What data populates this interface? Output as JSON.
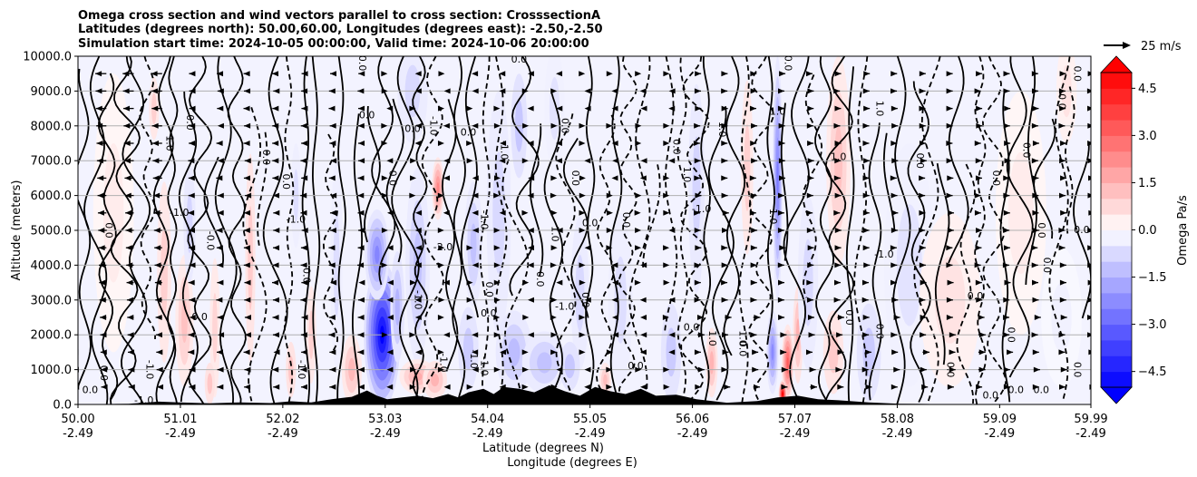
{
  "chart_data": {
    "type": "heatmap",
    "title_lines": [
      "Omega cross section and wind vectors parallel to cross section: CrosssectionA",
      "Latitudes (degrees north): 50.00,60.00, Longitudes (degrees east): -2.50,-2.50",
      "Simulation start time: 2024-10-05 00:00:00, Valid time: 2024-10-06 20:00:00"
    ],
    "ylabel": "Altitude (meters)",
    "xlabel_lines": [
      "Latitude (degrees N)",
      "Longitude (degrees E)"
    ],
    "yticks": [
      0,
      1000,
      2000,
      3000,
      4000,
      5000,
      6000,
      7000,
      8000,
      9000,
      10000
    ],
    "ytick_labels": [
      "0.0",
      "1000.0",
      "2000.0",
      "3000.0",
      "4000.0",
      "5000.0",
      "6000.0",
      "7000.0",
      "8000.0",
      "9000.0",
      "10000.0"
    ],
    "ylim": [
      0,
      10000
    ],
    "xlim": [
      50.0,
      59.99
    ],
    "xticks": [
      50.0,
      51.01,
      52.02,
      53.03,
      54.04,
      55.05,
      56.06,
      57.07,
      58.08,
      59.09,
      59.99
    ],
    "xtick_lat_labels": [
      "50.00",
      "51.01",
      "52.02",
      "53.03",
      "54.04",
      "55.05",
      "56.06",
      "57.07",
      "58.08",
      "59.09",
      "59.99"
    ],
    "xtick_lon_labels": [
      "-2.49",
      "-2.49",
      "-2.49",
      "-2.49",
      "-2.49",
      "-2.49",
      "-2.49",
      "-2.49",
      "-2.49",
      "-2.49",
      "-2.49"
    ],
    "grid": "horizontal",
    "colorbar": {
      "label": "Omega Pa/s",
      "range": [
        -5.0,
        5.0
      ],
      "ticks": [
        -4.5,
        -3.0,
        -1.5,
        0.0,
        1.5,
        3.0,
        4.5
      ],
      "tick_labels": [
        "−4.5",
        "−3.0",
        "−1.5",
        "0.0",
        "1.5",
        "3.0",
        "4.5"
      ],
      "extend": "both",
      "colormap": "bwr"
    },
    "quiver_key": {
      "label": "25 m/s",
      "speed": 25
    },
    "contour_labels": [
      {
        "text": "0.0",
        "lat": 50.12,
        "alt": 400
      },
      {
        "text": "0.0",
        "lat": 50.25,
        "alt": 900
      },
      {
        "text": "0.0",
        "lat": 50.3,
        "alt": 5000
      },
      {
        "text": "-1.0",
        "lat": 50.65,
        "alt": 100
      },
      {
        "text": "-1.0",
        "lat": 50.7,
        "alt": 1000
      },
      {
        "text": "1.0",
        "lat": 50.9,
        "alt": 7500
      },
      {
        "text": "-1.0",
        "lat": 51.0,
        "alt": 5500
      },
      {
        "text": "0.0",
        "lat": 51.1,
        "alt": 8100
      },
      {
        "text": "-0.0",
        "lat": 51.3,
        "alt": 4700
      },
      {
        "text": "0.0",
        "lat": 51.2,
        "alt": 2500
      },
      {
        "text": "0.0",
        "lat": 51.85,
        "alt": 7100
      },
      {
        "text": "0.0",
        "lat": 52.05,
        "alt": 6400
      },
      {
        "text": "-1.0",
        "lat": 52.15,
        "alt": 5300
      },
      {
        "text": "-1.0",
        "lat": 52.2,
        "alt": 1000
      },
      {
        "text": "0.0",
        "lat": 52.25,
        "alt": 3700
      },
      {
        "text": "0.0",
        "lat": 52.85,
        "alt": 8300
      },
      {
        "text": "0.0",
        "lat": 52.8,
        "alt": 9800
      },
      {
        "text": "0.0",
        "lat": 53.1,
        "alt": 6500
      },
      {
        "text": "0.0",
        "lat": 53.3,
        "alt": 7900
      },
      {
        "text": "-1.0",
        "lat": 53.35,
        "alt": 3000
      },
      {
        "text": "-1.0",
        "lat": 53.5,
        "alt": 8000
      },
      {
        "text": "-2.0",
        "lat": 53.6,
        "alt": 4500
      },
      {
        "text": "-1.0",
        "lat": 53.6,
        "alt": 1200
      },
      {
        "text": "-1.0",
        "lat": 53.9,
        "alt": 1300
      },
      {
        "text": "0.0",
        "lat": 53.85,
        "alt": 7800
      },
      {
        "text": "-1.0",
        "lat": 54.2,
        "alt": 7300
      },
      {
        "text": "-1.0",
        "lat": 54.0,
        "alt": 5300
      },
      {
        "text": "0.0",
        "lat": 54.05,
        "alt": 2600
      },
      {
        "text": "0.0",
        "lat": 54.05,
        "alt": 3300
      },
      {
        "text": "-1.0",
        "lat": 54.0,
        "alt": 1100
      },
      {
        "text": "0.0",
        "lat": 54.35,
        "alt": 9900
      },
      {
        "text": "1.0",
        "lat": 54.7,
        "alt": 4900
      },
      {
        "text": "0.0",
        "lat": 54.55,
        "alt": 3600
      },
      {
        "text": "-1.0",
        "lat": 54.8,
        "alt": 2800
      },
      {
        "text": "0.0",
        "lat": 54.8,
        "alt": 8000
      },
      {
        "text": "0.0",
        "lat": 54.9,
        "alt": 6500
      },
      {
        "text": "0.0",
        "lat": 55.05,
        "alt": 5200
      },
      {
        "text": "0.0",
        "lat": 55.0,
        "alt": 3000
      },
      {
        "text": "0.0",
        "lat": 55.4,
        "alt": 5300
      },
      {
        "text": "0.0",
        "lat": 55.5,
        "alt": 1100
      },
      {
        "text": "0.0",
        "lat": 55.9,
        "alt": 7400
      },
      {
        "text": "1.0",
        "lat": 56.0,
        "alt": 6600
      },
      {
        "text": "0.0",
        "lat": 56.05,
        "alt": 2200
      },
      {
        "text": "1.0",
        "lat": 56.25,
        "alt": 1900
      },
      {
        "text": "1.0",
        "lat": 56.35,
        "alt": 7900
      },
      {
        "text": "-1.0",
        "lat": 56.15,
        "alt": 5600
      },
      {
        "text": "1.0",
        "lat": 56.55,
        "alt": 1900
      },
      {
        "text": "0.0",
        "lat": 56.55,
        "alt": 1600
      },
      {
        "text": "1.0",
        "lat": 56.9,
        "alt": 8400
      },
      {
        "text": "1.0",
        "lat": 56.85,
        "alt": 5400
      },
      {
        "text": "0.0",
        "lat": 57.0,
        "alt": 9800
      },
      {
        "text": "1.0",
        "lat": 57.5,
        "alt": 7100
      },
      {
        "text": "0.0",
        "lat": 57.6,
        "alt": 2500
      },
      {
        "text": "1.0",
        "lat": 57.9,
        "alt": 8500
      },
      {
        "text": "-1.0",
        "lat": 57.95,
        "alt": 4300
      },
      {
        "text": "0.0",
        "lat": 57.9,
        "alt": 2100
      },
      {
        "text": "0.0",
        "lat": 58.3,
        "alt": 7000
      },
      {
        "text": "0.0",
        "lat": 58.85,
        "alt": 3100
      },
      {
        "text": "0.0",
        "lat": 59.05,
        "alt": 6500
      },
      {
        "text": "0.0",
        "lat": 58.6,
        "alt": 1000
      },
      {
        "text": "0.0",
        "lat": 59.0,
        "alt": 250
      },
      {
        "text": "0.0",
        "lat": 59.35,
        "alt": 7300
      },
      {
        "text": "0.0",
        "lat": 59.2,
        "alt": 2000
      },
      {
        "text": "0.0",
        "lat": 59.25,
        "alt": 400
      },
      {
        "text": "0.0",
        "lat": 59.5,
        "alt": 5000
      },
      {
        "text": "0.0",
        "lat": 59.55,
        "alt": 4000
      },
      {
        "text": "0.0",
        "lat": 59.5,
        "alt": 400
      },
      {
        "text": "0.0",
        "lat": 59.7,
        "alt": 8700
      },
      {
        "text": "0.0",
        "lat": 59.85,
        "alt": 9500
      },
      {
        "text": "0.0",
        "lat": 59.9,
        "alt": 5000
      },
      {
        "text": "0.0",
        "lat": 59.85,
        "alt": 1000
      }
    ],
    "omega_features": [
      {
        "lat": 53.0,
        "alt": 2000,
        "dlat": 0.18,
        "dalt": 2100,
        "value": -5.5
      },
      {
        "lat": 52.95,
        "alt": 4300,
        "dlat": 0.12,
        "dalt": 1300,
        "value": -2.6
      },
      {
        "lat": 53.15,
        "alt": 2800,
        "dlat": 0.07,
        "dalt": 1600,
        "value": -1.6
      },
      {
        "lat": 53.35,
        "alt": 4000,
        "dlat": 0.12,
        "dalt": 2800,
        "value": -1.3
      },
      {
        "lat": 53.35,
        "alt": 800,
        "dlat": 0.18,
        "dalt": 500,
        "value": 1.8
      },
      {
        "lat": 53.52,
        "alt": 700,
        "dlat": 0.12,
        "dalt": 550,
        "value": 1.6
      },
      {
        "lat": 52.7,
        "alt": 1000,
        "dlat": 0.1,
        "dalt": 1000,
        "value": 1.5
      },
      {
        "lat": 53.55,
        "alt": 6200,
        "dlat": 0.06,
        "dalt": 900,
        "value": 2.6
      },
      {
        "lat": 53.9,
        "alt": 4600,
        "dlat": 0.09,
        "dalt": 1800,
        "value": -1.3
      },
      {
        "lat": 54.15,
        "alt": 5500,
        "dlat": 0.12,
        "dalt": 3500,
        "value": -0.8
      },
      {
        "lat": 54.35,
        "alt": 8000,
        "dlat": 0.08,
        "dalt": 1500,
        "value": -1.2
      },
      {
        "lat": 54.3,
        "alt": 1500,
        "dlat": 0.18,
        "dalt": 1200,
        "value": -1.4
      },
      {
        "lat": 54.6,
        "alt": 1200,
        "dlat": 0.22,
        "dalt": 900,
        "value": -1.3
      },
      {
        "lat": 53.85,
        "alt": 1600,
        "dlat": 0.1,
        "dalt": 1200,
        "value": -1.1
      },
      {
        "lat": 54.95,
        "alt": 3200,
        "dlat": 0.09,
        "dalt": 2200,
        "value": -0.8
      },
      {
        "lat": 54.85,
        "alt": 1100,
        "dlat": 0.1,
        "dalt": 700,
        "value": -1.2
      },
      {
        "lat": 55.35,
        "alt": 3000,
        "dlat": 0.12,
        "dalt": 2500,
        "value": -0.7
      },
      {
        "lat": 51.05,
        "alt": 2400,
        "dlat": 0.09,
        "dalt": 1900,
        "value": 1.3
      },
      {
        "lat": 51.1,
        "alt": 5200,
        "dlat": 0.06,
        "dalt": 1700,
        "value": -0.9
      },
      {
        "lat": 50.85,
        "alt": 3800,
        "dlat": 0.07,
        "dalt": 2600,
        "value": 1.0
      },
      {
        "lat": 50.75,
        "alt": 8500,
        "dlat": 0.05,
        "dalt": 900,
        "value": 1.0
      },
      {
        "lat": 51.35,
        "alt": 2200,
        "dlat": 0.05,
        "dalt": 2000,
        "value": 0.9
      },
      {
        "lat": 51.3,
        "alt": 600,
        "dlat": 0.05,
        "dalt": 600,
        "value": 1.2
      },
      {
        "lat": 51.7,
        "alt": 4200,
        "dlat": 0.05,
        "dalt": 3000,
        "value": 1.1
      },
      {
        "lat": 52.1,
        "alt": 1000,
        "dlat": 0.05,
        "dalt": 800,
        "value": 1.2
      },
      {
        "lat": 52.3,
        "alt": 2000,
        "dlat": 0.05,
        "dalt": 1400,
        "value": 1.0
      },
      {
        "lat": 52.15,
        "alt": 6000,
        "dlat": 0.05,
        "dalt": 1500,
        "value": -0.7
      },
      {
        "lat": 52.55,
        "alt": 4000,
        "dlat": 0.06,
        "dalt": 3000,
        "value": -0.7
      },
      {
        "lat": 55.2,
        "alt": 700,
        "dlat": 0.06,
        "dalt": 500,
        "value": 1.4
      },
      {
        "lat": 55.85,
        "alt": 1500,
        "dlat": 0.1,
        "dalt": 1400,
        "value": -1.1
      },
      {
        "lat": 56.1,
        "alt": 6200,
        "dlat": 0.08,
        "dalt": 3000,
        "value": -0.9
      },
      {
        "lat": 56.25,
        "alt": 1200,
        "dlat": 0.06,
        "dalt": 1000,
        "value": 1.6
      },
      {
        "lat": 56.6,
        "alt": 6800,
        "dlat": 0.06,
        "dalt": 2500,
        "value": 1.0
      },
      {
        "lat": 56.9,
        "alt": 6500,
        "dlat": 0.05,
        "dalt": 3500,
        "value": -2.8
      },
      {
        "lat": 56.85,
        "alt": 1500,
        "dlat": 0.06,
        "dalt": 1200,
        "value": -2.5
      },
      {
        "lat": 57.0,
        "alt": 1200,
        "dlat": 0.06,
        "dalt": 1100,
        "value": 3.5
      },
      {
        "lat": 56.95,
        "alt": 300,
        "dlat": 0.04,
        "dalt": 400,
        "value": 5.5
      },
      {
        "lat": 57.1,
        "alt": 2000,
        "dlat": 0.05,
        "dalt": 1400,
        "value": 1.7
      },
      {
        "lat": 57.2,
        "alt": 3500,
        "dlat": 0.1,
        "dalt": 2500,
        "value": -0.8
      },
      {
        "lat": 57.45,
        "alt": 1500,
        "dlat": 0.1,
        "dalt": 1200,
        "value": 1.1
      },
      {
        "lat": 57.5,
        "alt": 7000,
        "dlat": 0.12,
        "dalt": 3000,
        "value": 1.3
      },
      {
        "lat": 57.8,
        "alt": 1500,
        "dlat": 0.12,
        "dalt": 1400,
        "value": -1.1
      },
      {
        "lat": 58.2,
        "alt": 4000,
        "dlat": 0.25,
        "dalt": 3500,
        "value": -0.6
      },
      {
        "lat": 58.6,
        "alt": 3000,
        "dlat": 0.3,
        "dalt": 2500,
        "value": 0.6
      },
      {
        "lat": 59.3,
        "alt": 5500,
        "dlat": 0.25,
        "dalt": 3500,
        "value": 0.4
      },
      {
        "lat": 59.7,
        "alt": 2500,
        "dlat": 0.2,
        "dalt": 2000,
        "value": -0.3
      },
      {
        "lat": 59.75,
        "alt": 9000,
        "dlat": 0.1,
        "dalt": 1500,
        "value": 0.6
      },
      {
        "lat": 50.35,
        "alt": 5500,
        "dlat": 0.2,
        "dalt": 4000,
        "value": 0.4
      },
      {
        "lat": 53.3,
        "alt": 9000,
        "dlat": 0.15,
        "dalt": 1500,
        "value": -0.8
      },
      {
        "lat": 54.7,
        "alt": 8500,
        "dlat": 0.1,
        "dalt": 1800,
        "value": -0.6
      }
    ],
    "terrain_profile": [
      {
        "lat": 50.0,
        "alt": 0
      },
      {
        "lat": 50.5,
        "alt": 20
      },
      {
        "lat": 50.8,
        "alt": 80
      },
      {
        "lat": 51.0,
        "alt": 60
      },
      {
        "lat": 51.3,
        "alt": 30
      },
      {
        "lat": 51.6,
        "alt": 60
      },
      {
        "lat": 51.9,
        "alt": 40
      },
      {
        "lat": 52.1,
        "alt": 90
      },
      {
        "lat": 52.3,
        "alt": 60
      },
      {
        "lat": 52.5,
        "alt": 150
      },
      {
        "lat": 52.7,
        "alt": 220
      },
      {
        "lat": 52.85,
        "alt": 400
      },
      {
        "lat": 52.95,
        "alt": 250
      },
      {
        "lat": 53.05,
        "alt": 150
      },
      {
        "lat": 53.2,
        "alt": 200
      },
      {
        "lat": 53.35,
        "alt": 250
      },
      {
        "lat": 53.5,
        "alt": 180
      },
      {
        "lat": 53.65,
        "alt": 300
      },
      {
        "lat": 53.75,
        "alt": 200
      },
      {
        "lat": 53.85,
        "alt": 350
      },
      {
        "lat": 54.0,
        "alt": 450
      },
      {
        "lat": 54.1,
        "alt": 300
      },
      {
        "lat": 54.2,
        "alt": 500
      },
      {
        "lat": 54.35,
        "alt": 450
      },
      {
        "lat": 54.5,
        "alt": 350
      },
      {
        "lat": 54.65,
        "alt": 550
      },
      {
        "lat": 54.8,
        "alt": 380
      },
      {
        "lat": 54.95,
        "alt": 250
      },
      {
        "lat": 55.1,
        "alt": 500
      },
      {
        "lat": 55.25,
        "alt": 380
      },
      {
        "lat": 55.4,
        "alt": 300
      },
      {
        "lat": 55.55,
        "alt": 450
      },
      {
        "lat": 55.7,
        "alt": 250
      },
      {
        "lat": 55.9,
        "alt": 280
      },
      {
        "lat": 56.1,
        "alt": 150
      },
      {
        "lat": 56.4,
        "alt": 50
      },
      {
        "lat": 56.7,
        "alt": 100
      },
      {
        "lat": 56.9,
        "alt": 200
      },
      {
        "lat": 57.1,
        "alt": 250
      },
      {
        "lat": 57.3,
        "alt": 150
      },
      {
        "lat": 57.5,
        "alt": 120
      },
      {
        "lat": 57.8,
        "alt": 60
      },
      {
        "lat": 58.1,
        "alt": 20
      },
      {
        "lat": 58.5,
        "alt": 10
      },
      {
        "lat": 59.0,
        "alt": 5
      },
      {
        "lat": 59.99,
        "alt": 0
      }
    ]
  }
}
